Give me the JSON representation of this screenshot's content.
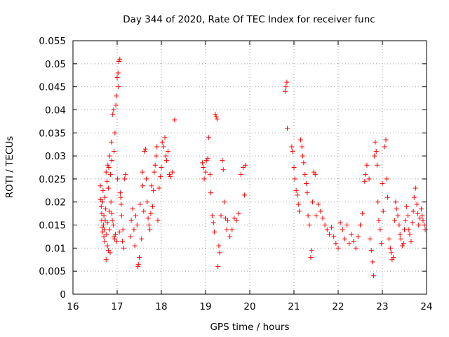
{
  "chart_data": {
    "type": "scatter",
    "title": "Day 344 of 2020, Rate Of TEC Index for receiver func",
    "xlabel": "GPS time / hours",
    "ylabel": "ROTI / TECUs",
    "xlim": [
      16,
      24
    ],
    "ylim": [
      0,
      0.055
    ],
    "x_ticks": [
      "16",
      "17",
      "18",
      "19",
      "20",
      "21",
      "22",
      "23",
      "24"
    ],
    "y_ticks": [
      "0",
      "0.005",
      "0.01",
      "0.015",
      "0.02",
      "0.025",
      "0.03",
      "0.035",
      "0.04",
      "0.045",
      "0.05",
      "0.055"
    ],
    "grid": true,
    "marker": "+",
    "color": "#ff0000",
    "points": [
      [
        16.62,
        0.0235
      ],
      [
        16.63,
        0.0205
      ],
      [
        16.64,
        0.019
      ],
      [
        16.65,
        0.0175
      ],
      [
        16.65,
        0.016
      ],
      [
        16.66,
        0.0145
      ],
      [
        16.67,
        0.0135
      ],
      [
        16.67,
        0.02
      ],
      [
        16.68,
        0.0225
      ],
      [
        16.69,
        0.015
      ],
      [
        16.7,
        0.0125
      ],
      [
        16.7,
        0.017
      ],
      [
        16.71,
        0.014
      ],
      [
        16.72,
        0.021
      ],
      [
        16.72,
        0.0115
      ],
      [
        16.73,
        0.016
      ],
      [
        16.74,
        0.0185
      ],
      [
        16.75,
        0.0075
      ],
      [
        16.75,
        0.0265
      ],
      [
        16.76,
        0.013
      ],
      [
        16.77,
        0.0245
      ],
      [
        16.78,
        0.0105
      ],
      [
        16.78,
        0.0155
      ],
      [
        16.79,
        0.028
      ],
      [
        16.8,
        0.0095
      ],
      [
        16.8,
        0.023
      ],
      [
        16.81,
        0.0275
      ],
      [
        16.82,
        0.018
      ],
      [
        16.83,
        0.03
      ],
      [
        16.83,
        0.014
      ],
      [
        16.84,
        0.009
      ],
      [
        16.85,
        0.026
      ],
      [
        16.86,
        0.02
      ],
      [
        16.87,
        0.033
      ],
      [
        16.88,
        0.029
      ],
      [
        16.88,
        0.0175
      ],
      [
        16.89,
        0.016
      ],
      [
        16.9,
        0.039
      ],
      [
        16.91,
        0.015
      ],
      [
        16.92,
        0.04
      ],
      [
        16.93,
        0.031
      ],
      [
        16.93,
        0.0125
      ],
      [
        16.94,
        0.012
      ],
      [
        16.95,
        0.035
      ],
      [
        16.96,
        0.013
      ],
      [
        16.97,
        0.041
      ],
      [
        16.98,
        0.043
      ],
      [
        16.99,
        0.0115
      ],
      [
        17.0,
        0.047
      ],
      [
        17.01,
        0.025
      ],
      [
        17.02,
        0.048
      ],
      [
        17.03,
        0.045
      ],
      [
        17.04,
        0.0505
      ],
      [
        17.05,
        0.0135
      ],
      [
        17.06,
        0.051
      ],
      [
        17.07,
        0.022
      ],
      [
        17.08,
        0.021
      ],
      [
        17.09,
        0.0195
      ],
      [
        17.1,
        0.017
      ],
      [
        17.12,
        0.0115
      ],
      [
        17.13,
        0.014
      ],
      [
        17.15,
        0.01
      ],
      [
        17.17,
        0.025
      ],
      [
        17.19,
        0.026
      ],
      [
        17.3,
        0.0125
      ],
      [
        17.32,
        0.016
      ],
      [
        17.35,
        0.0185
      ],
      [
        17.38,
        0.014
      ],
      [
        17.4,
        0.0105
      ],
      [
        17.42,
        0.017
      ],
      [
        17.45,
        0.015
      ],
      [
        17.47,
        0.006
      ],
      [
        17.48,
        0.0065
      ],
      [
        17.5,
        0.008
      ],
      [
        17.52,
        0.0195
      ],
      [
        17.55,
        0.012
      ],
      [
        17.57,
        0.0265
      ],
      [
        17.58,
        0.0235
      ],
      [
        17.6,
        0.018
      ],
      [
        17.62,
        0.031
      ],
      [
        17.64,
        0.0315
      ],
      [
        17.66,
        0.025
      ],
      [
        17.68,
        0.02
      ],
      [
        17.7,
        0.0165
      ],
      [
        17.72,
        0.015
      ],
      [
        17.74,
        0.014
      ],
      [
        17.76,
        0.0175
      ],
      [
        17.78,
        0.0235
      ],
      [
        17.8,
        0.019
      ],
      [
        17.82,
        0.0225
      ],
      [
        17.84,
        0.0265
      ],
      [
        17.86,
        0.028
      ],
      [
        17.88,
        0.03
      ],
      [
        17.9,
        0.032
      ],
      [
        17.92,
        0.016
      ],
      [
        17.95,
        0.023
      ],
      [
        17.98,
        0.0255
      ],
      [
        18.0,
        0.0275
      ],
      [
        18.02,
        0.033
      ],
      [
        18.05,
        0.032
      ],
      [
        18.08,
        0.034
      ],
      [
        18.1,
        0.03
      ],
      [
        18.12,
        0.029
      ],
      [
        18.15,
        0.031
      ],
      [
        18.18,
        0.026
      ],
      [
        18.2,
        0.0255
      ],
      [
        18.25,
        0.0265
      ],
      [
        18.3,
        0.0378
      ],
      [
        18.93,
        0.0285
      ],
      [
        18.95,
        0.0275
      ],
      [
        18.97,
        0.025
      ],
      [
        19.0,
        0.0265
      ],
      [
        19.02,
        0.029
      ],
      [
        19.05,
        0.0295
      ],
      [
        19.07,
        0.034
      ],
      [
        19.1,
        0.026
      ],
      [
        19.12,
        0.022
      ],
      [
        19.15,
        0.017
      ],
      [
        19.18,
        0.0155
      ],
      [
        19.2,
        0.0135
      ],
      [
        19.22,
        0.039
      ],
      [
        19.24,
        0.0385
      ],
      [
        19.26,
        0.038
      ],
      [
        19.28,
        0.006
      ],
      [
        19.3,
        0.0105
      ],
      [
        19.32,
        0.009
      ],
      [
        19.35,
        0.017
      ],
      [
        19.38,
        0.029
      ],
      [
        19.4,
        0.027
      ],
      [
        19.42,
        0.02
      ],
      [
        19.45,
        0.0165
      ],
      [
        19.48,
        0.014
      ],
      [
        19.5,
        0.016
      ],
      [
        19.55,
        0.0125
      ],
      [
        19.6,
        0.014
      ],
      [
        19.65,
        0.0165
      ],
      [
        19.7,
        0.016
      ],
      [
        19.75,
        0.0175
      ],
      [
        19.8,
        0.026
      ],
      [
        19.85,
        0.0275
      ],
      [
        19.9,
        0.028
      ],
      [
        19.88,
        0.0215
      ],
      [
        20.8,
        0.044
      ],
      [
        20.82,
        0.045
      ],
      [
        20.84,
        0.046
      ],
      [
        20.85,
        0.036
      ],
      [
        20.95,
        0.032
      ],
      [
        20.97,
        0.031
      ],
      [
        21.0,
        0.0275
      ],
      [
        21.02,
        0.025
      ],
      [
        21.05,
        0.0225
      ],
      [
        21.08,
        0.0215
      ],
      [
        21.1,
        0.0195
      ],
      [
        21.12,
        0.018
      ],
      [
        21.15,
        0.0335
      ],
      [
        21.18,
        0.032
      ],
      [
        21.2,
        0.03
      ],
      [
        21.22,
        0.0285
      ],
      [
        21.25,
        0.026
      ],
      [
        21.28,
        0.024
      ],
      [
        21.3,
        0.022
      ],
      [
        21.32,
        0.017
      ],
      [
        21.35,
        0.015
      ],
      [
        21.38,
        0.008
      ],
      [
        21.4,
        0.0095
      ],
      [
        21.42,
        0.02
      ],
      [
        21.45,
        0.0265
      ],
      [
        21.48,
        0.026
      ],
      [
        21.5,
        0.017
      ],
      [
        21.55,
        0.0195
      ],
      [
        21.6,
        0.018
      ],
      [
        21.65,
        0.0165
      ],
      [
        21.7,
        0.015
      ],
      [
        21.75,
        0.014
      ],
      [
        21.8,
        0.013
      ],
      [
        21.85,
        0.0145
      ],
      [
        21.9,
        0.0125
      ],
      [
        21.95,
        0.011
      ],
      [
        22.0,
        0.01
      ],
      [
        22.05,
        0.0155
      ],
      [
        22.1,
        0.014
      ],
      [
        22.15,
        0.012
      ],
      [
        22.2,
        0.015
      ],
      [
        22.25,
        0.011
      ],
      [
        22.3,
        0.013
      ],
      [
        22.35,
        0.0115
      ],
      [
        22.4,
        0.01
      ],
      [
        22.45,
        0.0125
      ],
      [
        22.5,
        0.015
      ],
      [
        22.55,
        0.0175
      ],
      [
        22.6,
        0.0245
      ],
      [
        22.62,
        0.026
      ],
      [
        22.65,
        0.028
      ],
      [
        22.7,
        0.025
      ],
      [
        22.72,
        0.012
      ],
      [
        22.75,
        0.0095
      ],
      [
        22.78,
        0.007
      ],
      [
        22.8,
        0.004
      ],
      [
        22.82,
        0.03
      ],
      [
        22.84,
        0.033
      ],
      [
        22.86,
        0.031
      ],
      [
        22.88,
        0.028
      ],
      [
        22.9,
        0.02
      ],
      [
        22.92,
        0.016
      ],
      [
        22.95,
        0.014
      ],
      [
        22.98,
        0.011
      ],
      [
        23.0,
        0.024
      ],
      [
        23.02,
        0.018
      ],
      [
        23.05,
        0.032
      ],
      [
        23.08,
        0.0335
      ],
      [
        23.1,
        0.025
      ],
      [
        23.12,
        0.021
      ],
      [
        23.15,
        0.012
      ],
      [
        23.18,
        0.01
      ],
      [
        23.2,
        0.009
      ],
      [
        23.22,
        0.0075
      ],
      [
        23.25,
        0.008
      ],
      [
        23.28,
        0.016
      ],
      [
        23.3,
        0.02
      ],
      [
        23.32,
        0.0185
      ],
      [
        23.35,
        0.017
      ],
      [
        23.38,
        0.015
      ],
      [
        23.4,
        0.013
      ],
      [
        23.42,
        0.012
      ],
      [
        23.45,
        0.0105
      ],
      [
        23.48,
        0.011
      ],
      [
        23.5,
        0.014
      ],
      [
        23.52,
        0.016
      ],
      [
        23.55,
        0.019
      ],
      [
        23.58,
        0.017
      ],
      [
        23.6,
        0.014
      ],
      [
        23.62,
        0.013
      ],
      [
        23.65,
        0.0115
      ],
      [
        23.68,
        0.0155
      ],
      [
        23.7,
        0.018
      ],
      [
        23.72,
        0.021
      ],
      [
        23.75,
        0.023
      ],
      [
        23.78,
        0.0195
      ],
      [
        23.8,
        0.0175
      ],
      [
        23.82,
        0.015
      ],
      [
        23.85,
        0.0165
      ],
      [
        23.88,
        0.0185
      ],
      [
        23.9,
        0.017
      ],
      [
        23.92,
        0.016
      ],
      [
        23.95,
        0.015
      ],
      [
        23.97,
        0.014
      ]
    ]
  }
}
